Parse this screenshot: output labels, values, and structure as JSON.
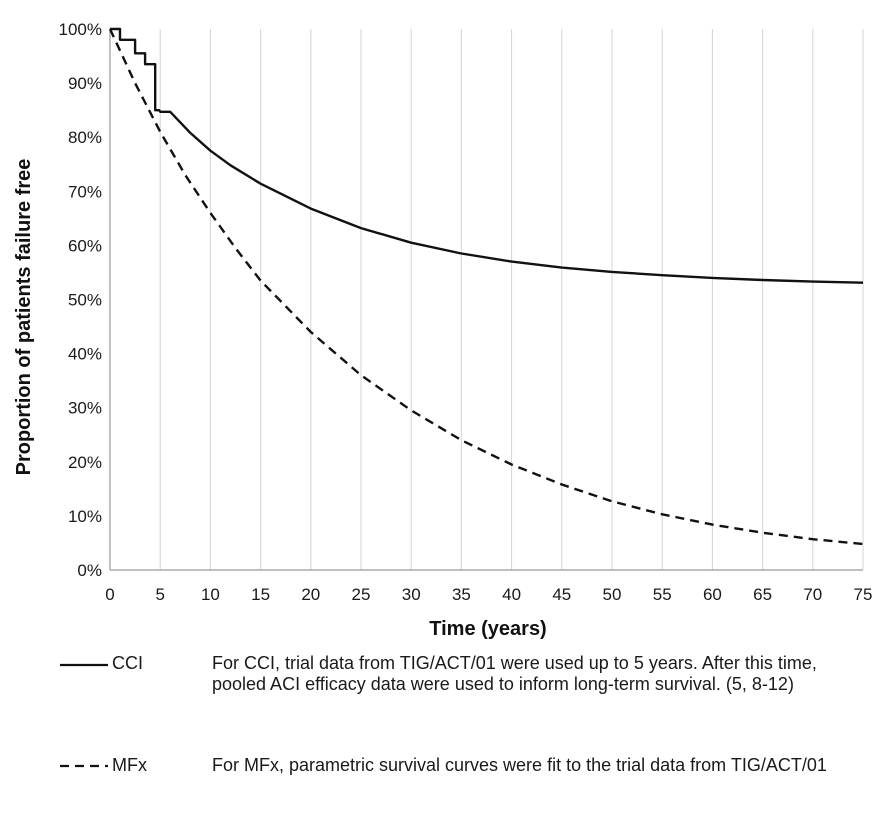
{
  "chart_data": {
    "type": "line",
    "xlabel": "Time (years)",
    "ylabel": "Proportion of patients failure free",
    "xlim": [
      0,
      75
    ],
    "ylim": [
      0,
      100
    ],
    "x_ticks": [
      "0",
      "5",
      "10",
      "15",
      "20",
      "25",
      "30",
      "35",
      "40",
      "45",
      "50",
      "55",
      "60",
      "65",
      "70",
      "75"
    ],
    "y_ticks": [
      "0%",
      "10%",
      "20%",
      "30%",
      "40%",
      "50%",
      "60%",
      "70%",
      "80%",
      "90%",
      "100%"
    ],
    "grid": "vertical",
    "series": [
      {
        "name": "CCI",
        "style": "solid",
        "color": "#111111",
        "points": [
          [
            0,
            100
          ],
          [
            1,
            100
          ],
          [
            1,
            98
          ],
          [
            2.5,
            98
          ],
          [
            2.5,
            95.5
          ],
          [
            3.5,
            95.5
          ],
          [
            3.5,
            93.5
          ],
          [
            4.5,
            93.5
          ],
          [
            4.5,
            85
          ],
          [
            4.9,
            85
          ],
          [
            5,
            84.7
          ],
          [
            6,
            84.7
          ],
          [
            8,
            80.8
          ],
          [
            10,
            77.5
          ],
          [
            12,
            74.8
          ],
          [
            15,
            71.4
          ],
          [
            20,
            66.8
          ],
          [
            25,
            63.2
          ],
          [
            30,
            60.5
          ],
          [
            35,
            58.5
          ],
          [
            40,
            57
          ],
          [
            45,
            55.9
          ],
          [
            50,
            55.1
          ],
          [
            55,
            54.5
          ],
          [
            60,
            54
          ],
          [
            65,
            53.6
          ],
          [
            70,
            53.3
          ],
          [
            75,
            53.1
          ]
        ]
      },
      {
        "name": "MFx",
        "style": "dashed",
        "color": "#111111",
        "points": [
          [
            0,
            100
          ],
          [
            2.5,
            90
          ],
          [
            5,
            81
          ],
          [
            7.5,
            73
          ],
          [
            10,
            66
          ],
          [
            12.5,
            59.5
          ],
          [
            15,
            53.5
          ],
          [
            20,
            44
          ],
          [
            25,
            36
          ],
          [
            30,
            29.5
          ],
          [
            35,
            24
          ],
          [
            40,
            19.5
          ],
          [
            45,
            15.8
          ],
          [
            50,
            12.7
          ],
          [
            55,
            10.3
          ],
          [
            60,
            8.4
          ],
          [
            65,
            6.9
          ],
          [
            70,
            5.7
          ],
          [
            75,
            4.8
          ]
        ]
      }
    ]
  },
  "legend": [
    {
      "name": "CCI",
      "note": "For CCI, trial data from TIG/ACT/01  were used up to 5 years. After this time, pooled ACI efficacy data were used to inform long-term survival. (5, 8-12)"
    },
    {
      "name": "MFx",
      "note": "For MFx, parametric survival curves were fit to the trial data from TIG/ACT/01"
    }
  ]
}
